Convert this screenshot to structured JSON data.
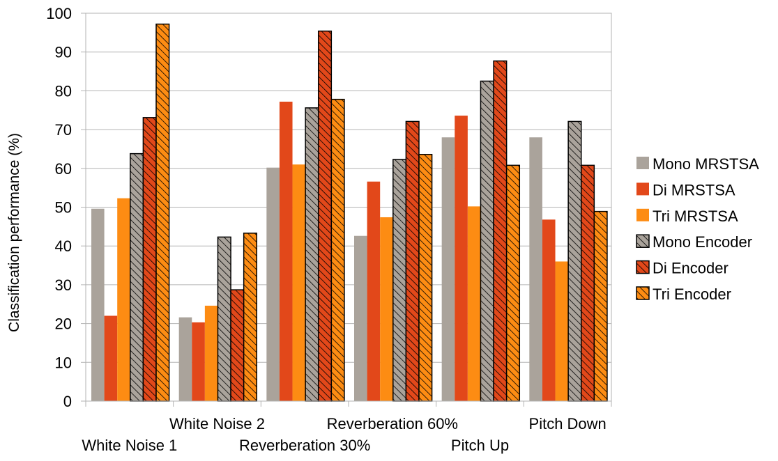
{
  "chart_data": {
    "type": "bar",
    "title": "",
    "xlabel": "",
    "ylabel": "Classification performance (%)",
    "ylim": [
      0,
      100
    ],
    "yticks": [
      0,
      10,
      20,
      30,
      40,
      50,
      60,
      70,
      80,
      90,
      100
    ],
    "grid": true,
    "legend_position": "right",
    "categories": [
      "White Noise 1",
      "White Noise 2",
      "Reverberation 30%",
      "Reverberation 60%",
      "Pitch Up",
      "Pitch Down"
    ],
    "series": [
      {
        "name": "Mono MRSTSA",
        "color": "#aaa39b",
        "hatch": false,
        "values": [
          49.6,
          21.6,
          60.2,
          42.6,
          68.0,
          68.0
        ]
      },
      {
        "name": "Di MRSTSA",
        "color": "#e2481a",
        "hatch": false,
        "values": [
          22.0,
          20.3,
          77.2,
          56.6,
          73.6,
          46.8
        ]
      },
      {
        "name": "Tri MRSTSA",
        "color": "#fd8c13",
        "hatch": false,
        "values": [
          52.3,
          24.6,
          61.0,
          47.4,
          50.2,
          36.0
        ]
      },
      {
        "name": "Mono Encoder",
        "color": "#aaa39b",
        "hatch": true,
        "values": [
          63.8,
          42.3,
          75.6,
          62.3,
          82.5,
          72.1
        ]
      },
      {
        "name": "Di Encoder",
        "color": "#e2481a",
        "hatch": true,
        "values": [
          73.1,
          28.7,
          95.4,
          72.1,
          87.7,
          60.8
        ]
      },
      {
        "name": "Tri Encoder",
        "color": "#fd8c13",
        "hatch": true,
        "values": [
          97.2,
          43.3,
          77.8,
          63.6,
          60.8,
          48.9
        ]
      }
    ]
  }
}
